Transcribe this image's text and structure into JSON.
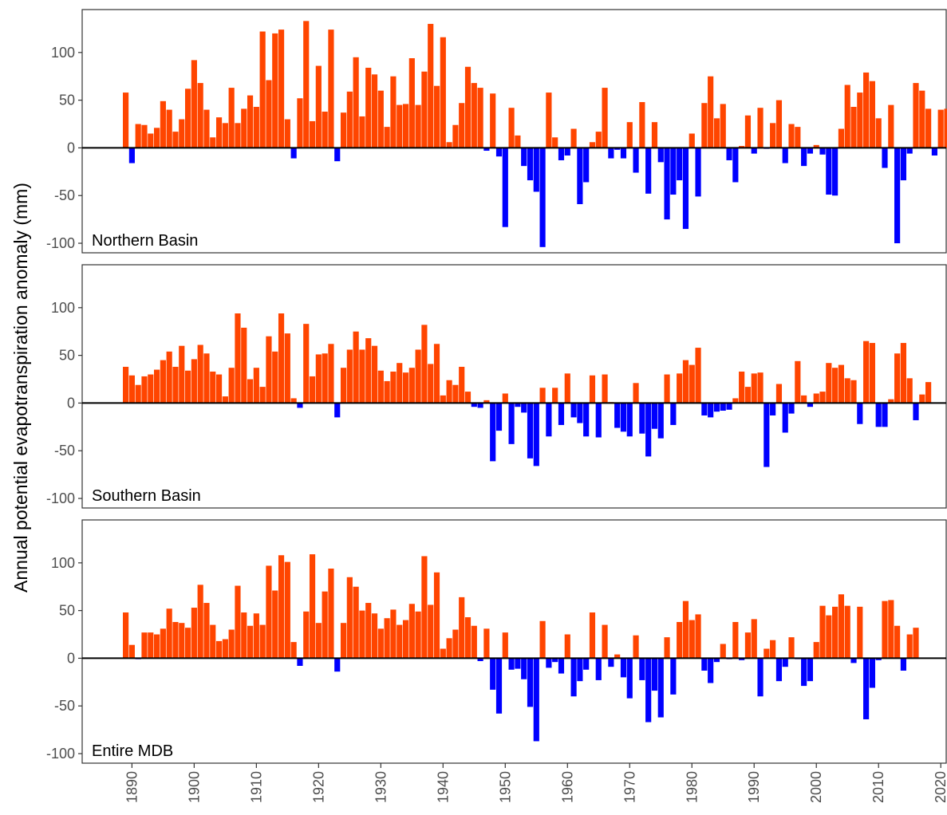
{
  "chart_data": {
    "type": "bar",
    "ylabel": "Annual potential evapotranspiration anomaly (mm)",
    "xlabel": "",
    "xlim": [
      1882,
      2021
    ],
    "x_ticks": [
      "1890",
      "1900",
      "1910",
      "1920",
      "1930",
      "1940",
      "1950",
      "1960",
      "1970",
      "1980",
      "1990",
      "2000",
      "2010",
      "2020"
    ],
    "y_ticks": [
      "100",
      "50",
      "0",
      "-50",
      "-100"
    ],
    "ylim": [
      -110,
      145
    ],
    "colors": {
      "positive": "#ff4500",
      "negative": "#0000ff",
      "zero_line": "#000000",
      "frame": "#333333"
    },
    "grid": false,
    "start_year": 1889,
    "panels": [
      {
        "label": "Northern Basin",
        "values": [
          58,
          -16,
          25,
          24,
          15,
          21,
          49,
          40,
          17,
          30,
          62,
          92,
          68,
          40,
          11,
          32,
          26,
          63,
          26,
          41,
          55,
          43,
          122,
          71,
          120,
          124,
          30,
          -11,
          52,
          133,
          28,
          86,
          38,
          124,
          -14,
          37,
          59,
          95,
          33,
          84,
          77,
          60,
          22,
          75,
          45,
          46,
          94,
          45,
          80,
          130,
          65,
          116,
          6,
          24,
          47,
          85,
          68,
          63,
          -3,
          57,
          -9,
          -83,
          42,
          13,
          -19,
          -34,
          -46,
          -104,
          58,
          11,
          -13,
          -8,
          20,
          -59,
          -36,
          6,
          17,
          63,
          -11,
          -2,
          -11,
          27,
          -26,
          48,
          -48,
          27,
          -15,
          -75,
          -49,
          -34,
          -85,
          15,
          -51,
          47,
          75,
          31,
          46,
          -13,
          -36,
          2,
          34,
          -6,
          42,
          -1,
          26,
          50,
          -16,
          25,
          22,
          -19,
          -6,
          3,
          -7,
          -49,
          -50,
          20,
          66,
          43,
          58,
          79,
          70,
          31,
          -21,
          45,
          -100,
          -34,
          -6,
          68,
          60,
          41,
          -8,
          40,
          41
        ]
      },
      {
        "label": "Southern Basin",
        "values": [
          38,
          29,
          19,
          28,
          30,
          35,
          45,
          54,
          38,
          60,
          34,
          46,
          61,
          52,
          33,
          30,
          7,
          37,
          94,
          79,
          25,
          37,
          17,
          70,
          54,
          94,
          73,
          5,
          -5,
          83,
          28,
          51,
          52,
          62,
          -15,
          37,
          56,
          75,
          56,
          68,
          60,
          34,
          23,
          33,
          42,
          32,
          37,
          56,
          82,
          41,
          62,
          8,
          24,
          19,
          38,
          12,
          -4,
          -5,
          3,
          -61,
          -29,
          10,
          -43,
          -4,
          -10,
          -58,
          -66,
          16,
          -35,
          16,
          -23,
          31,
          -15,
          -21,
          -35,
          29,
          -36,
          30,
          1,
          -26,
          -30,
          -35,
          21,
          -32,
          -56,
          -27,
          -37,
          30,
          -23,
          31,
          45,
          40,
          58,
          -13,
          -15,
          -9,
          -8,
          -7,
          5,
          33,
          17,
          31,
          32,
          -67,
          -13,
          20,
          -31,
          -11,
          44,
          8,
          -4,
          10,
          12,
          42,
          37,
          40,
          26,
          24,
          -22,
          65,
          63,
          -25,
          -25,
          4,
          52,
          63,
          26,
          -18,
          9,
          22
        ]
      },
      {
        "label": "Entire MDB",
        "values": [
          48,
          14,
          -1,
          27,
          27,
          25,
          31,
          52,
          38,
          37,
          32,
          53,
          77,
          58,
          35,
          18,
          20,
          30,
          76,
          48,
          34,
          47,
          35,
          97,
          71,
          108,
          101,
          17,
          -8,
          49,
          109,
          37,
          70,
          94,
          -14,
          37,
          85,
          75,
          50,
          58,
          47,
          31,
          42,
          51,
          35,
          40,
          57,
          49,
          107,
          56,
          90,
          10,
          21,
          30,
          64,
          43,
          34,
          -3,
          31,
          -33,
          -58,
          27,
          -12,
          -11,
          -22,
          -51,
          -87,
          39,
          -10,
          -4,
          -16,
          25,
          -40,
          -24,
          -12,
          48,
          -23,
          35,
          -9,
          4,
          -20,
          -42,
          24,
          -23,
          -67,
          -34,
          -62,
          22,
          -38,
          38,
          60,
          40,
          46,
          -13,
          -26,
          -4,
          15,
          -1,
          38,
          -2,
          27,
          41,
          -40,
          10,
          19,
          -24,
          -9,
          22,
          -1,
          -29,
          -24,
          17,
          55,
          45,
          54,
          67,
          55,
          -5,
          54,
          -64,
          -31,
          -2,
          60,
          61,
          34,
          -13,
          25,
          32
        ]
      }
    ]
  }
}
